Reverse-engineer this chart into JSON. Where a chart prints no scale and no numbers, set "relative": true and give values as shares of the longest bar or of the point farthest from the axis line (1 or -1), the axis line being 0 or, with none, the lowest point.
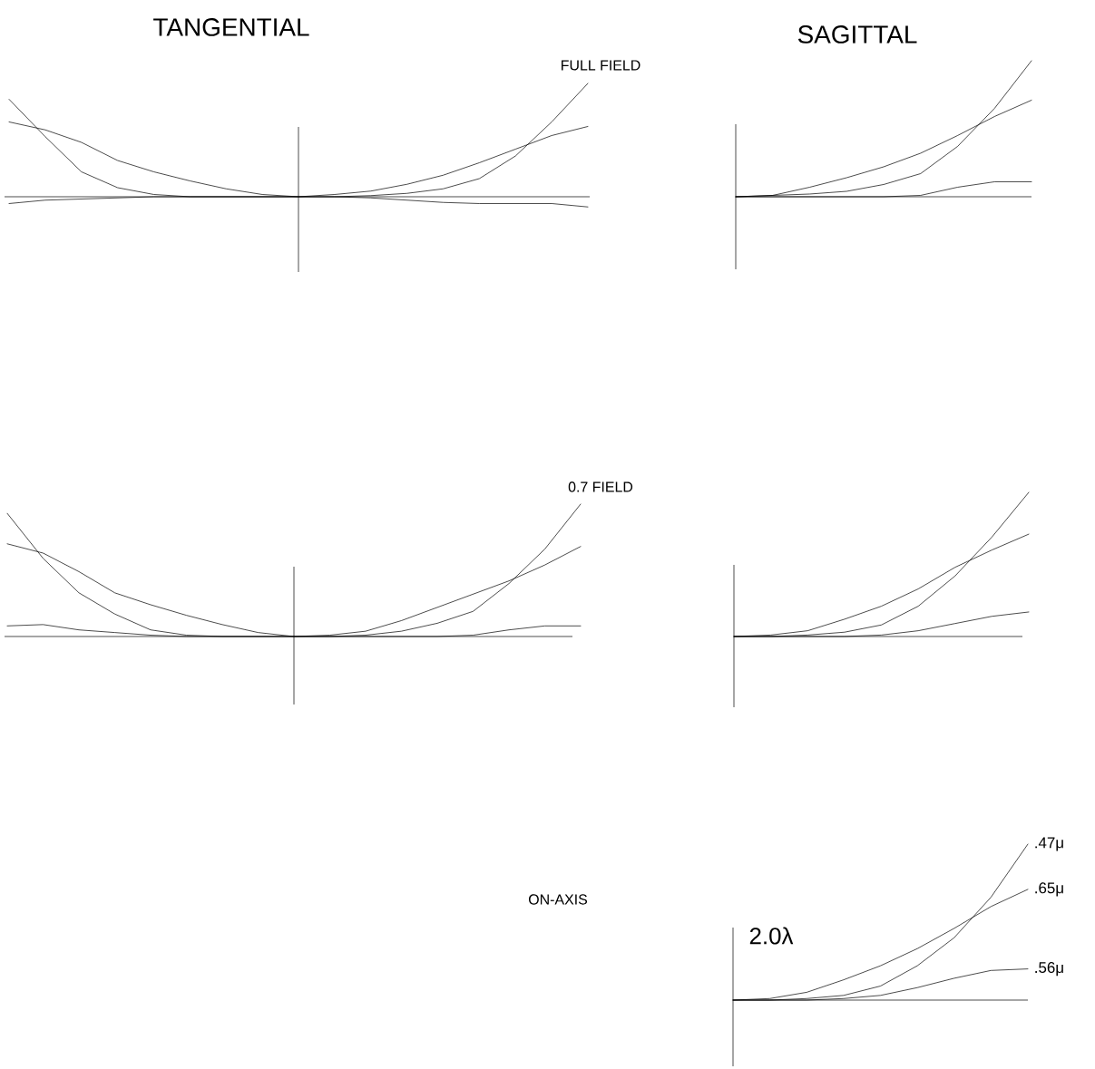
{
  "chart_data": [
    {
      "type": "line",
      "title": "TANGENTIAL",
      "subtitle": "FULL FIELD",
      "relative": true,
      "categories": [
        null,
        null,
        null,
        null,
        null,
        null,
        null,
        null,
        null,
        null,
        null,
        null,
        null,
        null,
        null,
        null,
        null
      ],
      "series": [
        {
          "color": "#000000",
          "values": [
            0.86,
            0.53,
            0.22,
            0.08,
            0.02,
            0,
            0,
            0,
            0,
            0,
            0.01,
            0.03,
            0.07,
            0.16,
            0.36,
            0.66,
            1
          ]
        },
        {
          "color": "#000000",
          "values": [
            0.66,
            0.59,
            0.48,
            0.32,
            0.22,
            0.14,
            0.07,
            0.02,
            0,
            0.02,
            0.05,
            0.11,
            0.19,
            0.3,
            0.42,
            0.54,
            0.62
          ]
        },
        {
          "color": "#000000",
          "values": [
            -0.06,
            -0.03,
            -0.02,
            -0.01,
            0,
            0,
            0,
            0,
            0,
            0,
            -0.01,
            -0.03,
            -0.05,
            -0.06,
            -0.06,
            -0.06,
            -0.09
          ]
        }
      ]
    },
    {
      "type": "line",
      "title": "SAGITTAL",
      "relative": true,
      "categories": [
        null,
        null,
        null,
        null,
        null,
        null,
        null,
        null,
        null
      ],
      "series": [
        {
          "color": "#000000",
          "values": [
            0,
            0.01,
            0.02,
            0.04,
            0.09,
            0.17,
            0.37,
            0.65,
            1
          ]
        },
        {
          "color": "#000000",
          "values": [
            0,
            0.01,
            0.07,
            0.14,
            0.22,
            0.32,
            0.45,
            0.59,
            0.71
          ]
        },
        {
          "color": "#000000",
          "values": [
            0,
            0,
            0,
            0,
            0,
            0.01,
            0.07,
            0.11,
            0.11
          ]
        }
      ]
    },
    {
      "type": "line",
      "subtitle": "0.7 FIELD",
      "relative": true,
      "categories": [
        null,
        null,
        null,
        null,
        null,
        null,
        null,
        null,
        null,
        null,
        null,
        null,
        null,
        null,
        null,
        null,
        null
      ],
      "series": [
        {
          "color": "#000000",
          "values": [
            0.93,
            0.59,
            0.33,
            0.17,
            0.05,
            0.01,
            0,
            0,
            0,
            0,
            0.01,
            0.04,
            0.1,
            0.19,
            0.4,
            0.66,
            1
          ]
        },
        {
          "color": "#000000",
          "values": [
            0.7,
            0.63,
            0.49,
            0.33,
            0.24,
            0.16,
            0.09,
            0.03,
            0,
            0.01,
            0.04,
            0.12,
            0.22,
            0.32,
            0.42,
            0.54,
            0.68
          ]
        },
        {
          "color": "#000000",
          "values": [
            0.08,
            0.09,
            0.05,
            0.03,
            0.01,
            0,
            0,
            0,
            0,
            0,
            0,
            0,
            0,
            0.01,
            0.05,
            0.08,
            0.08
          ]
        }
      ]
    },
    {
      "type": "line",
      "relative": true,
      "categories": [
        null,
        null,
        null,
        null,
        null,
        null,
        null,
        null,
        null
      ],
      "series": [
        {
          "color": "#000000",
          "values": [
            0,
            0,
            0.01,
            0.03,
            0.08,
            0.21,
            0.42,
            0.69,
            1
          ]
        },
        {
          "color": "#000000",
          "values": [
            0,
            0.01,
            0.04,
            0.12,
            0.21,
            0.33,
            0.48,
            0.6,
            0.71
          ]
        },
        {
          "color": "#000000",
          "values": [
            0,
            0,
            0,
            0,
            0.01,
            0.04,
            0.09,
            0.14,
            0.17
          ]
        }
      ]
    },
    {
      "type": "other",
      "title": "ON-AXIS"
    },
    {
      "type": "line",
      "relative": true,
      "annotations": [
        "2.0λ"
      ],
      "categories": [
        null,
        null,
        null,
        null,
        null,
        null,
        null,
        null,
        null
      ],
      "series": [
        {
          "name": ".47μ",
          "color": "#000000",
          "values": [
            0,
            0,
            0.01,
            0.03,
            0.09,
            0.22,
            0.4,
            0.66,
            1
          ]
        },
        {
          "name": ".65μ",
          "color": "#000000",
          "values": [
            0,
            0.01,
            0.05,
            0.13,
            0.22,
            0.33,
            0.46,
            0.6,
            0.71
          ]
        },
        {
          "name": ".56μ",
          "color": "#000000",
          "values": [
            0,
            0,
            0,
            0.01,
            0.03,
            0.08,
            0.14,
            0.19,
            0.2
          ]
        }
      ]
    }
  ]
}
